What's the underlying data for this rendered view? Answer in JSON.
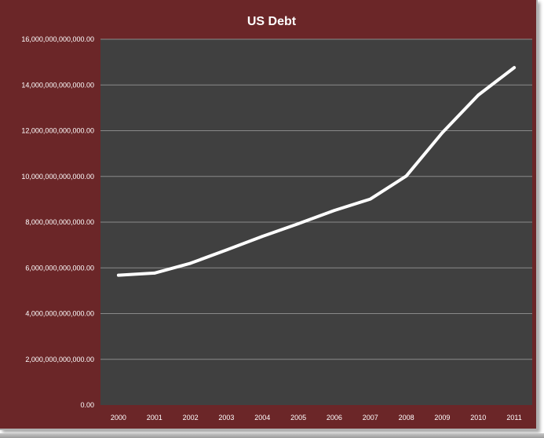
{
  "chart_data": {
    "type": "line",
    "title": "US Debt",
    "xlabel": "",
    "ylabel": "",
    "categories": [
      "2000",
      "2001",
      "2002",
      "2003",
      "2004",
      "2005",
      "2006",
      "2007",
      "2008",
      "2009",
      "2010",
      "2011"
    ],
    "series": [
      {
        "values": [
          5680000000000,
          5770000000000,
          6200000000000,
          6780000000000,
          7380000000000,
          7930000000000,
          8510000000000,
          9010000000000,
          10020000000000,
          11910000000000,
          13560000000000,
          14760000000000
        ]
      }
    ],
    "ylim": [
      0,
      16000000000000
    ],
    "y_ticks": [
      0,
      2000000000000,
      4000000000000,
      6000000000000,
      8000000000000,
      10000000000000,
      12000000000000,
      14000000000000,
      16000000000000
    ],
    "y_tick_labels": [
      "0.00",
      "2,000,000,000,000.00",
      "4,000,000,000,000.00",
      "6,000,000,000,000.00",
      "8,000,000,000,000.00",
      "10,000,000,000,000.00",
      "12,000,000,000,000.00",
      "14,000,000,000,000.00",
      "16,000,000,000,000.00"
    ],
    "grid": true,
    "legend": "none",
    "colors": {
      "frame_background": "#6b2628",
      "plot_background": "#404040",
      "gridline": "#8a8a8a",
      "line": "#ffffff",
      "text": "#ffffff"
    }
  }
}
